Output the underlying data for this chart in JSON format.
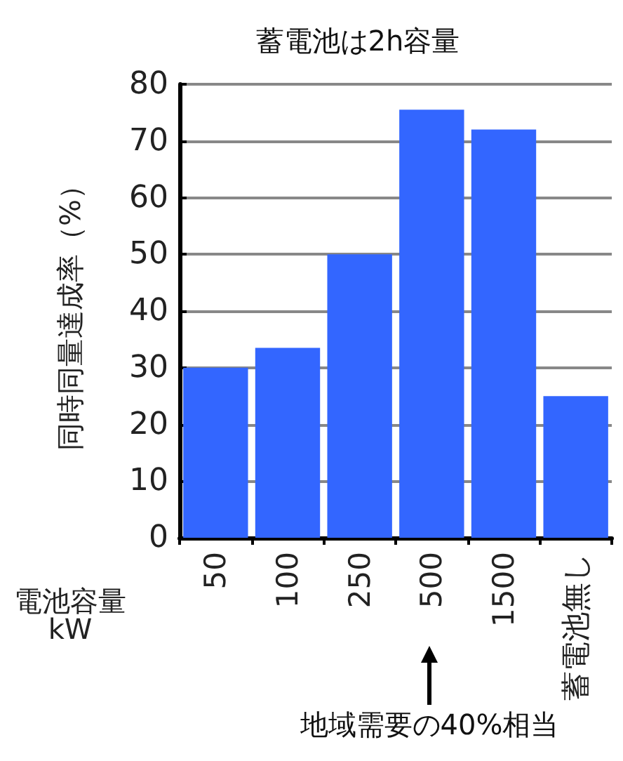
{
  "chart_data": {
    "type": "bar",
    "title": "蓄電池は2h容量",
    "xlabel": "電池容量\nkW",
    "ylabel": "同時同量達成率（%）",
    "categories": [
      "50",
      "100",
      "250",
      "500",
      "1500",
      "蓄電池無し"
    ],
    "values": [
      30,
      33.5,
      50,
      75.5,
      72,
      25
    ],
    "color": "#3366ff",
    "ylim": [
      0,
      80
    ],
    "yticks": [
      0,
      10,
      20,
      30,
      40,
      50,
      60,
      70,
      80
    ],
    "grid": "y",
    "annotations": [
      "地域需要の40%相当"
    ]
  }
}
